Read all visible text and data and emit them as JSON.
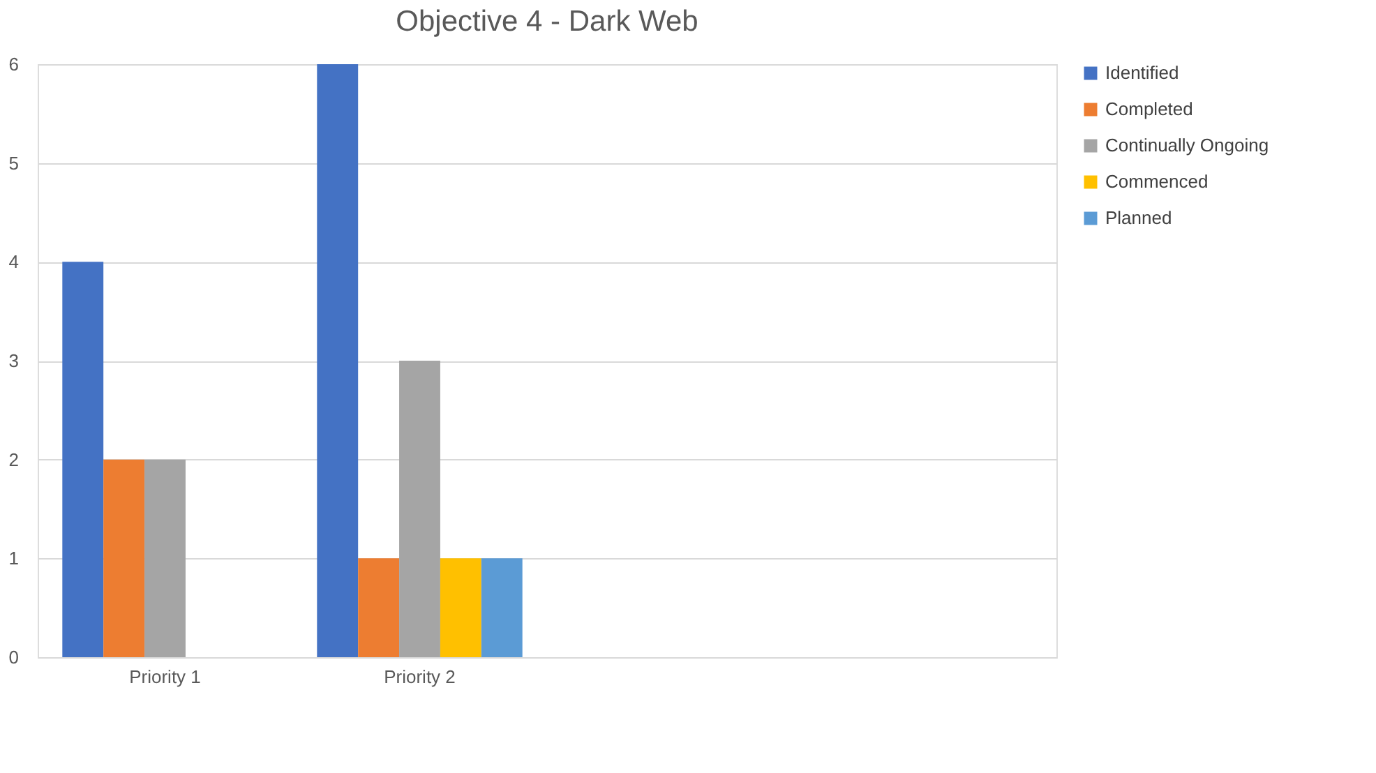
{
  "chart_data": {
    "type": "bar",
    "title": "Objective 4 - Dark Web",
    "categories": [
      "Priority 1",
      "Priority 2",
      null,
      null
    ],
    "series": [
      {
        "name": "Identified",
        "color": "#4472c4",
        "values": [
          4,
          6,
          null,
          null
        ]
      },
      {
        "name": "Completed",
        "color": "#ed7d31",
        "values": [
          2,
          1,
          null,
          null
        ]
      },
      {
        "name": "Continually Ongoing",
        "color": "#a5a5a5",
        "values": [
          2,
          3,
          null,
          null
        ]
      },
      {
        "name": "Commenced",
        "color": "#ffc000",
        "values": [
          null,
          1,
          null,
          null
        ]
      },
      {
        "name": "Planned",
        "color": "#5b9bd5",
        "values": [
          null,
          1,
          null,
          null
        ]
      }
    ],
    "ylim": [
      0,
      6
    ],
    "yticks": [
      0,
      1,
      2,
      3,
      4,
      5,
      6
    ],
    "grid": "y",
    "legend": "right"
  }
}
